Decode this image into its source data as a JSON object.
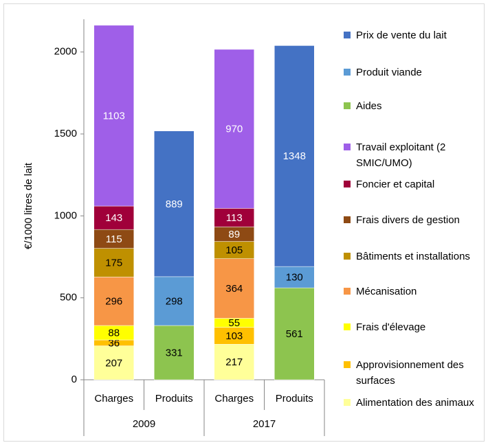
{
  "chart_data": {
    "type": "stacked_bar",
    "y_label": "€/1000 litres de lait",
    "categories": [
      "Charges",
      "Produits",
      "Charges",
      "Produits"
    ],
    "groups": [
      "2009",
      "2017"
    ],
    "ylim": [
      0,
      2200
    ],
    "yticks": [
      0,
      500,
      1000,
      1500,
      2000
    ],
    "grid": false,
    "legend": "right",
    "series": [
      {
        "name": "Prix de vente du lait",
        "color": "#4472c4",
        "values": [
          null,
          889,
          null,
          1348
        ]
      },
      {
        "name": "Produit viande",
        "color": "#5b9bd5",
        "values": [
          null,
          298,
          null,
          130
        ]
      },
      {
        "name": "Aides",
        "color": "#8dc44f",
        "values": [
          null,
          331,
          null,
          561
        ]
      },
      {
        "name": "Travail exploitant (2 SMIC/UMO)",
        "color": "#9f5fe8",
        "values": [
          1103,
          null,
          970,
          null
        ]
      },
      {
        "name": "Foncier et capital",
        "color": "#a0003a",
        "values": [
          143,
          null,
          113,
          null
        ]
      },
      {
        "name": "Frais divers de gestion",
        "color": "#8e4a14",
        "values": [
          115,
          null,
          89,
          null
        ]
      },
      {
        "name": "Bâtiments et installations",
        "color": "#bf9000",
        "values": [
          175,
          null,
          105,
          null
        ]
      },
      {
        "name": "Mécanisation",
        "color": "#f79646",
        "values": [
          296,
          null,
          364,
          null
        ]
      },
      {
        "name": "Frais d'élevage",
        "color": "#ffff00",
        "values": [
          88,
          null,
          55,
          null
        ]
      },
      {
        "name": "Approvisionnement des surfaces",
        "color": "#ffc000",
        "values": [
          36,
          null,
          103,
          null
        ]
      },
      {
        "name": "Alimentation des animaux",
        "color": "#ffff99",
        "values": [
          207,
          null,
          217,
          null
        ]
      }
    ]
  }
}
